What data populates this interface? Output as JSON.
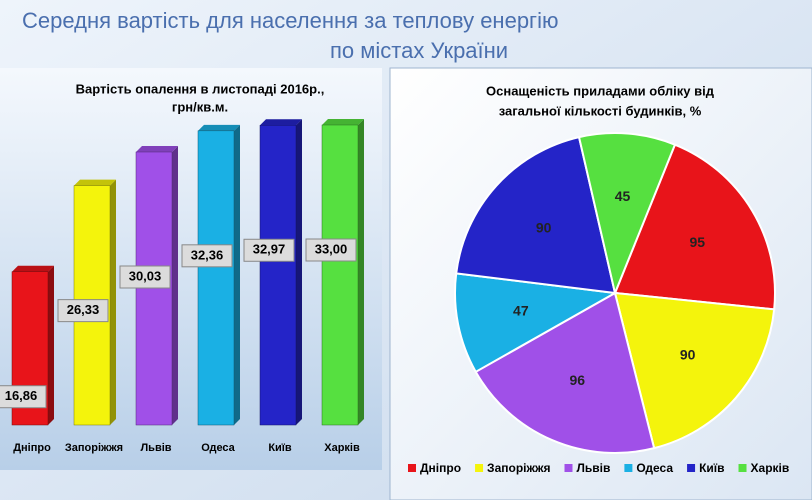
{
  "title": [
    "Середня вартість для населення за теплову енергію",
    "по містах України"
  ],
  "chart_data": [
    {
      "type": "bar",
      "title": [
        "Вартість опалення в листопаді 2016р.,",
        "грн/кв.м."
      ],
      "categories": [
        "Дніпро",
        "Запоріжжя",
        "Львів",
        "Одеса",
        "Київ",
        "Харків"
      ],
      "values": [
        16.86,
        26.33,
        30.03,
        32.36,
        32.97,
        33.0
      ],
      "value_labels": [
        "16,86",
        "26,33",
        "30,03",
        "32,36",
        "32,97",
        "33,00"
      ],
      "colors": [
        "#e8141a",
        "#f4f40c",
        "#a050e8",
        "#1ab0e4",
        "#2424c8",
        "#56e040"
      ]
    },
    {
      "type": "pie",
      "title": [
        "Оснащеність приладами обліку від",
        "загальної кількості будинків, %"
      ],
      "categories": [
        "Дніпро",
        "Запоріжжя",
        "Львів",
        "Одеса",
        "Київ",
        "Харків"
      ],
      "values": [
        95,
        90,
        96,
        47,
        90,
        45
      ],
      "colors": [
        "#e8141a",
        "#f4f40c",
        "#a050e8",
        "#1ab0e4",
        "#2424c8",
        "#56e040"
      ],
      "legend": "bottom"
    }
  ]
}
